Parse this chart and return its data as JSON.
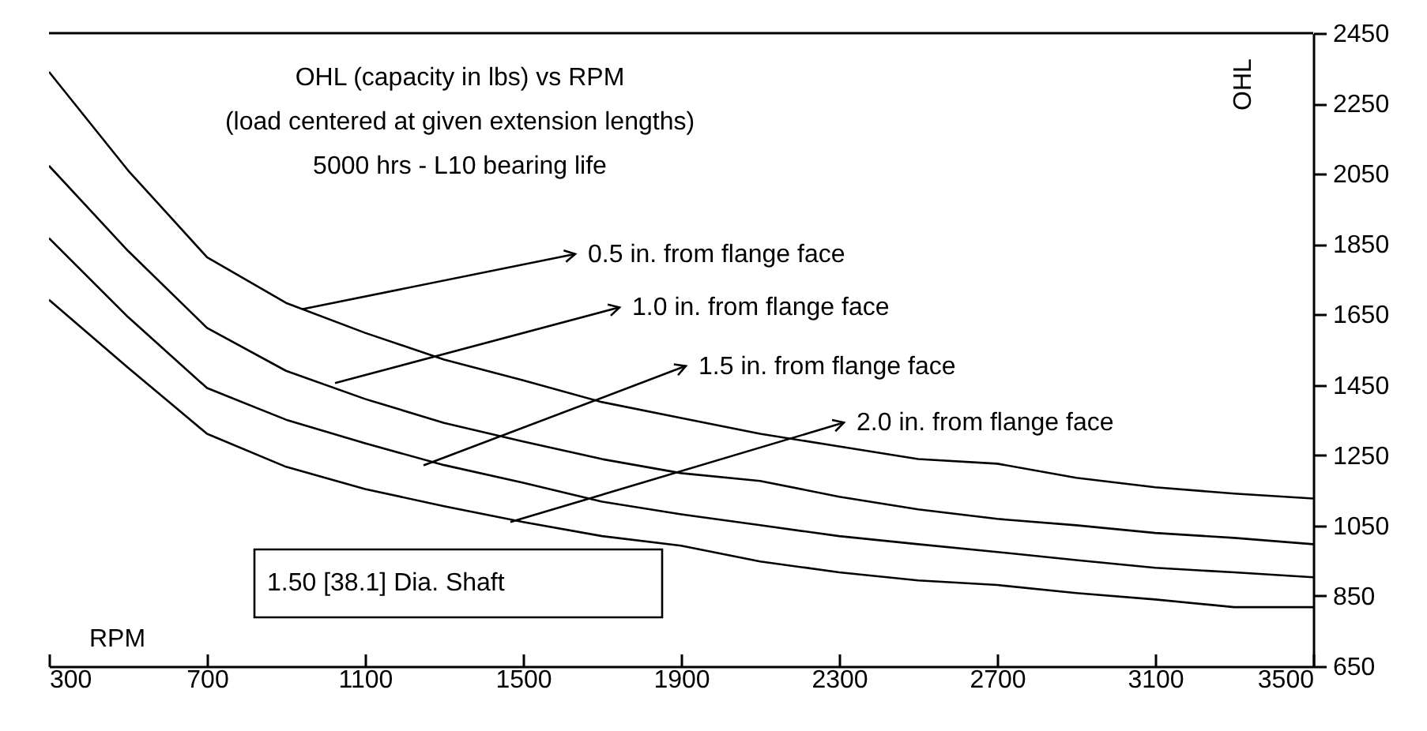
{
  "chart_data": {
    "type": "line",
    "title": "OHL (capacity in lbs) vs RPM\n(load centered at given extension lengths)\n5000 hrs - L10 bearing life",
    "xlabel": "RPM",
    "ylabel": "OHL",
    "x": [
      300,
      500,
      700,
      900,
      1100,
      1300,
      1500,
      1700,
      1900,
      2100,
      2300,
      2500,
      2700,
      2900,
      3100,
      3300,
      3500
    ],
    "series": [
      {
        "color": "#000000",
        "values": [
          2340,
          2060,
          1813,
          1683,
          1598,
          1522,
          1463,
          1401,
          1356,
          1311,
          1275,
          1239,
          1226,
          1186,
          1159,
          1141,
          1127
        ]
      },
      {
        "color": "#000000",
        "values": [
          2073,
          1831,
          1612,
          1490,
          1410,
          1342,
          1289,
          1239,
          1199,
          1177,
          1132,
          1096,
          1069,
          1051,
          1029,
          1015,
          997
        ]
      },
      {
        "color": "#000000",
        "values": [
          1867,
          1643,
          1441,
          1351,
          1284,
          1222,
          1172,
          1118,
          1082,
          1051,
          1020,
          997,
          975,
          952,
          930,
          917,
          903
        ]
      },
      {
        "color": "#000000",
        "values": [
          1692,
          1499,
          1311,
          1217,
          1154,
          1105,
          1060,
          1020,
          993,
          948,
          917,
          894,
          881,
          858,
          840,
          818,
          818
        ]
      }
    ],
    "xlim": [
      300,
      3500
    ],
    "xticks": [
      300,
      700,
      1100,
      1500,
      1900,
      2300,
      2700,
      3100,
      3500
    ],
    "ylim": [
      650,
      2450
    ],
    "yticks": [
      650,
      850,
      1050,
      1250,
      1450,
      1650,
      1850,
      2050,
      2250,
      2450
    ],
    "grid": false,
    "marker": "none",
    "line_style": "solid",
    "annotations": [
      {
        "text": "0.5 in. from flange face",
        "x": 940,
        "y": 1665
      },
      {
        "text": "1.0 in. from flange face",
        "x": 1024,
        "y": 1455
      },
      {
        "text": "1.5 in. from flange face",
        "x": 1248,
        "y": 1221
      },
      {
        "text": "2.0 in. from flange face",
        "x": 1468,
        "y": 1060
      },
      "1.50 [38.1] Dia. Shaft"
    ]
  }
}
